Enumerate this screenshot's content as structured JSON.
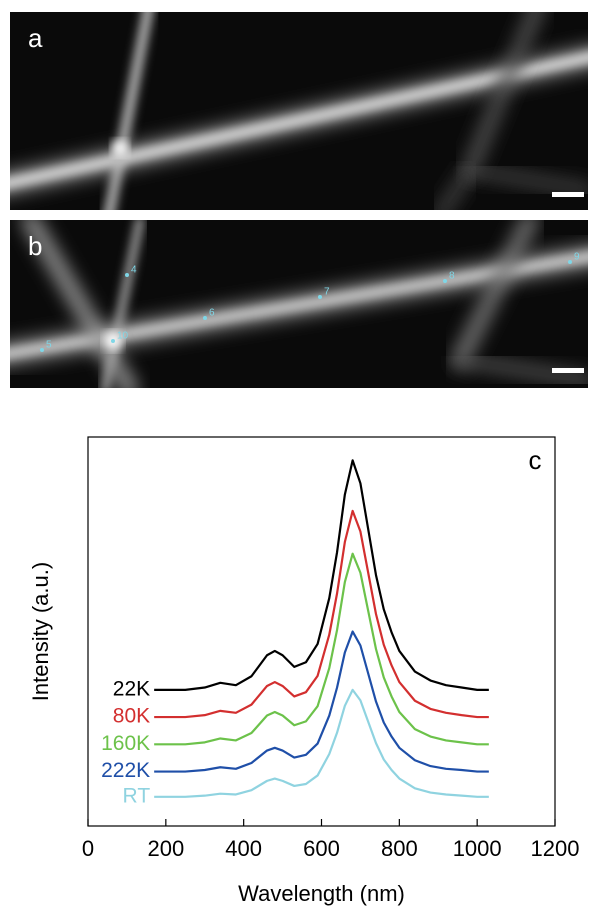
{
  "panels": [
    {
      "label": "a"
    },
    {
      "label": "b",
      "points": [
        "4",
        "5",
        "6",
        "7",
        "8",
        "9",
        "10"
      ]
    }
  ],
  "chart_data": {
    "type": "line",
    "panel_label": "c",
    "x_label": "Wavelength (nm)",
    "y_label": "Intensity (a.u.)",
    "xlim": [
      0,
      1200
    ],
    "xticks": [
      0,
      200,
      400,
      600,
      800,
      1000,
      1200
    ],
    "ylim": [
      0,
      100
    ],
    "x": [
      170,
      200,
      250,
      300,
      340,
      380,
      420,
      460,
      480,
      500,
      530,
      560,
      590,
      620,
      640,
      660,
      680,
      700,
      720,
      740,
      760,
      780,
      800,
      840,
      880,
      920,
      960,
      1000,
      1030
    ],
    "series": [
      {
        "name": "22K",
        "color": "#000000",
        "values": [
          35,
          35,
          35,
          35.6,
          36.8,
          36.2,
          38.5,
          43.9,
          45,
          43.9,
          40.9,
          42.1,
          46.8,
          58.6,
          70.4,
          85.2,
          94,
          88.1,
          76.3,
          64.5,
          55.7,
          49.8,
          45,
          39.7,
          37.4,
          36.2,
          35.6,
          35,
          35
        ]
      },
      {
        "name": "80K",
        "color": "#d32f2f",
        "values": [
          28,
          28,
          28,
          28.5,
          29.6,
          29.1,
          31.2,
          36,
          37,
          36,
          33.3,
          34.4,
          38.6,
          49.2,
          59.8,
          73,
          81,
          75.7,
          65.1,
          54.5,
          46.6,
          41.3,
          37,
          32.2,
          30.1,
          29.1,
          28.5,
          28,
          28
        ]
      },
      {
        "name": "160K",
        "color": "#6cc24a",
        "values": [
          21,
          21,
          21,
          21.5,
          22.5,
          22,
          23.9,
          28.4,
          29.3,
          28.4,
          25.9,
          26.9,
          30.8,
          40.6,
          50.4,
          62.7,
          70,
          65.1,
          55.3,
          45.5,
          38.2,
          33.3,
          29.3,
          24.9,
          23,
          22,
          21.5,
          21,
          21
        ]
      },
      {
        "name": "222K",
        "color": "#1f4fa8",
        "values": [
          14,
          14,
          14,
          14.4,
          15.1,
          14.7,
          16.2,
          19.4,
          20.1,
          19.4,
          17.6,
          18.3,
          21.2,
          28.4,
          35.6,
          44.6,
          50,
          46.4,
          39.2,
          32,
          26.6,
          23,
          20.1,
          16.9,
          15.4,
          14.7,
          14.4,
          14,
          14
        ]
      },
      {
        "name": "RT",
        "color": "#8fd3e0",
        "values": [
          7.5,
          7.5,
          7.5,
          7.8,
          8.3,
          8.1,
          9.2,
          11.6,
          12.2,
          11.6,
          10.3,
          10.8,
          13,
          18.5,
          24,
          30.9,
          35,
          32.3,
          26.8,
          21.3,
          17.1,
          14.4,
          12.2,
          9.7,
          8.6,
          8.1,
          7.8,
          7.5,
          7.5
        ]
      }
    ]
  }
}
